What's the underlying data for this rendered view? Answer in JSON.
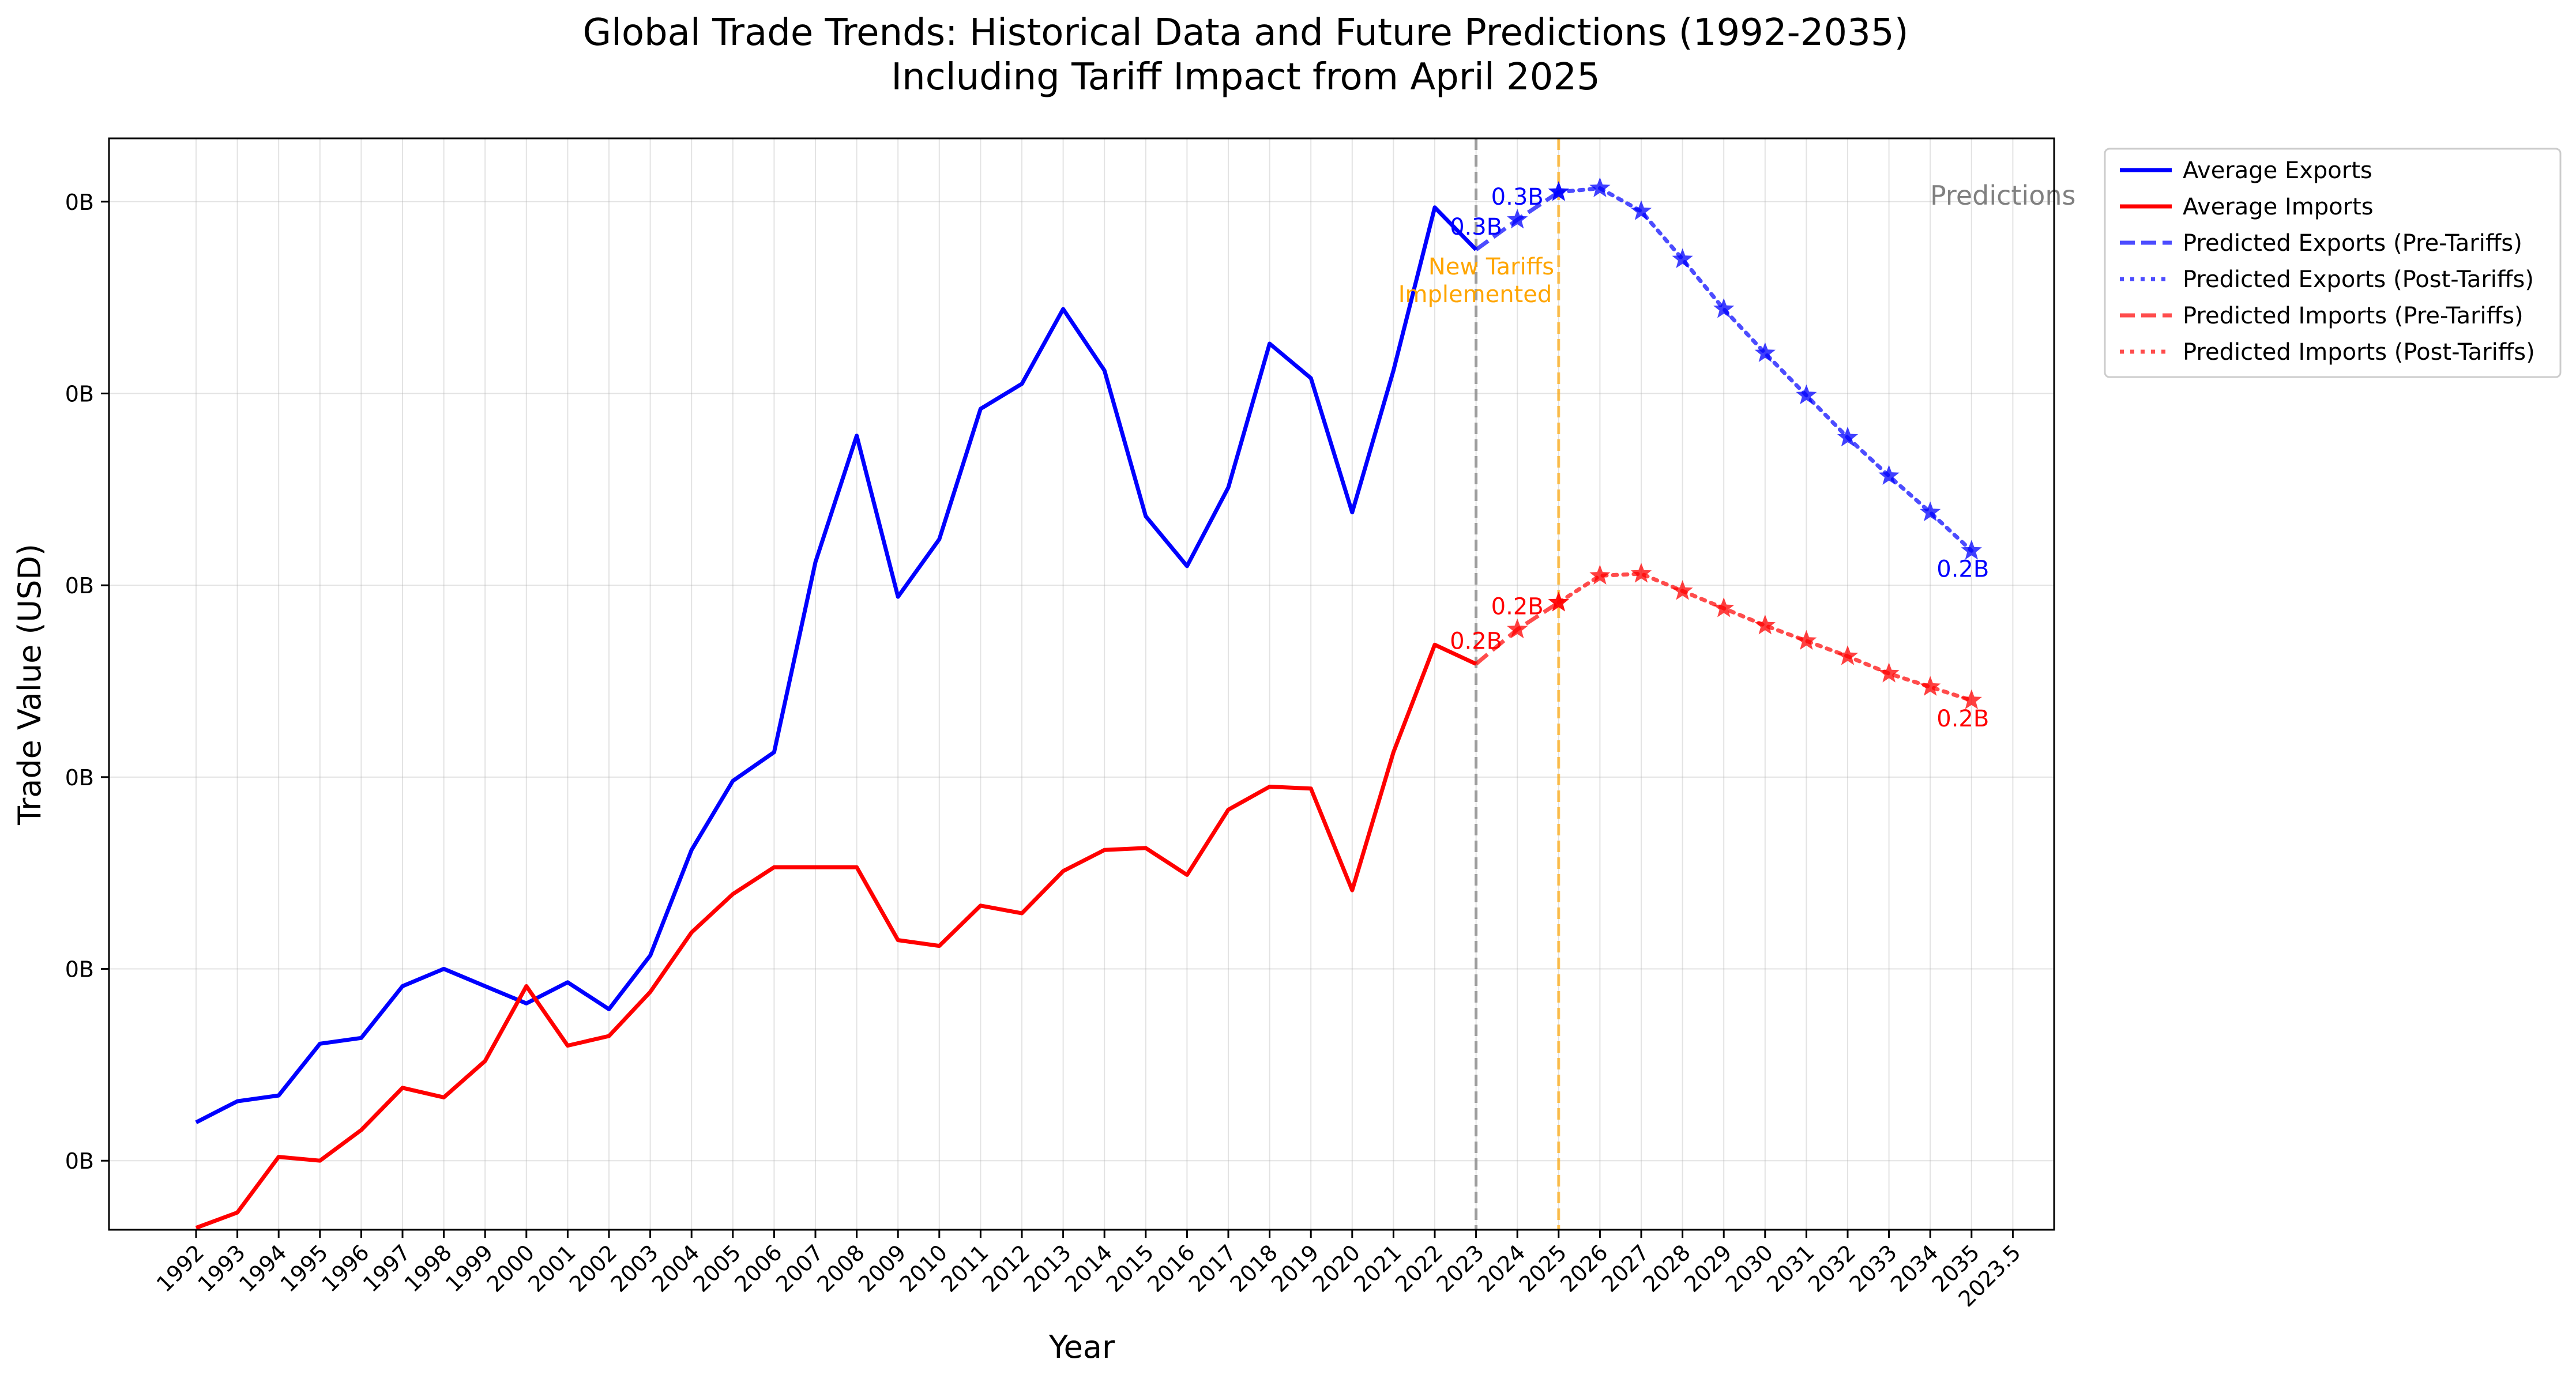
{
  "chart_data": {
    "type": "line",
    "title_line1": "Global Trade Trends: Historical Data and Future Predictions (1992-2035)",
    "title_line2": "Including Tariff Impact from April 2025",
    "xlabel": "Year",
    "ylabel": "Trade Value (USD)",
    "x_ticks": [
      "1992",
      "1993",
      "1994",
      "1995",
      "1996",
      "1997",
      "1998",
      "1999",
      "2000",
      "2001",
      "2002",
      "2003",
      "2004",
      "2005",
      "2006",
      "2007",
      "2008",
      "2009",
      "2010",
      "2011",
      "2012",
      "2013",
      "2014",
      "2015",
      "2016",
      "2017",
      "2018",
      "2019",
      "2020",
      "2021",
      "2022",
      "2023",
      "2024",
      "2025",
      "2026",
      "2027",
      "2028",
      "2029",
      "2030",
      "2031",
      "2032",
      "2033",
      "2034",
      "2035",
      "2023.5"
    ],
    "y_ticks": [
      "0B",
      "0B",
      "0B",
      "0B",
      "0B",
      "0B"
    ],
    "y_tick_values": [
      0.05,
      0.1,
      0.15,
      0.2,
      0.25,
      0.3
    ],
    "ylim": [
      0.032,
      0.3165
    ],
    "grid": true,
    "legend_position": "outside-top-right",
    "colors": {
      "exports": "#0000ff",
      "imports": "#ff0000",
      "tariff_line": "#ffa500",
      "current_line": "#888888",
      "predictions_text": "#808080",
      "tariff_text": "#ffa500"
    },
    "legend": [
      "Average Exports",
      "Average Imports",
      "Predicted Exports (Pre-Tariffs)",
      "Predicted Exports (Post-Tariffs)",
      "Predicted Imports (Pre-Tariffs)",
      "Predicted Imports (Post-Tariffs)"
    ],
    "series": [
      {
        "name": "Average Exports",
        "style": "solid",
        "x": [
          1992,
          1993,
          1994,
          1995,
          1996,
          1997,
          1998,
          1999,
          2000,
          2001,
          2002,
          2003,
          2004,
          2005,
          2006,
          2007,
          2008,
          2009,
          2010,
          2011,
          2012,
          2013,
          2014,
          2015,
          2016,
          2017,
          2018,
          2019,
          2020,
          2021,
          2022,
          2023
        ],
        "values": [
          0.06,
          0.0655,
          0.067,
          0.0805,
          0.082,
          0.0955,
          0.1,
          0.0955,
          0.091,
          0.0965,
          0.0895,
          0.1035,
          0.131,
          0.149,
          0.1565,
          0.206,
          0.239,
          0.197,
          0.212,
          0.246,
          0.2525,
          0.272,
          0.256,
          0.218,
          0.205,
          0.2255,
          0.263,
          0.254,
          0.219,
          0.256,
          0.2985,
          0.2875
        ]
      },
      {
        "name": "Average Imports",
        "style": "solid",
        "x": [
          1992,
          1993,
          1994,
          1995,
          1996,
          1997,
          1998,
          1999,
          2000,
          2001,
          2002,
          2003,
          2004,
          2005,
          2006,
          2007,
          2008,
          2009,
          2010,
          2011,
          2012,
          2013,
          2014,
          2015,
          2016,
          2017,
          2018,
          2019,
          2020,
          2021,
          2022,
          2023
        ],
        "values": [
          0.0325,
          0.0365,
          0.051,
          0.05,
          0.058,
          0.069,
          0.0665,
          0.076,
          0.0955,
          0.08,
          0.0825,
          0.094,
          0.1095,
          0.1195,
          0.1265,
          0.1265,
          0.1265,
          0.1075,
          0.106,
          0.1165,
          0.1145,
          0.1255,
          0.131,
          0.1315,
          0.1245,
          0.1415,
          0.1475,
          0.147,
          0.1205,
          0.1565,
          0.1845,
          0.1795
        ]
      },
      {
        "name": "Predicted Exports (Pre-Tariffs)",
        "style": "dashed",
        "x": [
          2023,
          2024,
          2025
        ],
        "values": [
          0.2875,
          0.2953,
          0.3025
        ]
      },
      {
        "name": "Predicted Exports (Post-Tariffs)",
        "style": "dotted",
        "x": [
          2025,
          2026,
          2027,
          2028,
          2029,
          2030,
          2031,
          2032,
          2033,
          2034,
          2035
        ],
        "values": [
          0.3025,
          0.3035,
          0.2975,
          0.285,
          0.272,
          0.2605,
          0.2495,
          0.2385,
          0.2285,
          0.219,
          0.209
        ]
      },
      {
        "name": "Predicted Imports (Pre-Tariffs)",
        "style": "dashed",
        "x": [
          2023,
          2024,
          2025
        ],
        "values": [
          0.1795,
          0.1885,
          0.1955
        ]
      },
      {
        "name": "Predicted Imports (Post-Tariffs)",
        "style": "dotted",
        "x": [
          2025,
          2026,
          2027,
          2028,
          2029,
          2030,
          2031,
          2032,
          2033,
          2034,
          2035
        ],
        "values": [
          0.1955,
          0.2025,
          0.203,
          0.1985,
          0.194,
          0.1895,
          0.1855,
          0.1815,
          0.177,
          0.1735,
          0.17
        ]
      }
    ],
    "point_labels": [
      {
        "text": "0.3B",
        "x": 2023,
        "y": 0.2875,
        "series": "exports"
      },
      {
        "text": "0.3B",
        "x": 2024,
        "y": 0.2953,
        "series": "exports"
      },
      {
        "text": "0.2B",
        "x": 2035,
        "y": 0.209,
        "series": "exports"
      },
      {
        "text": "0.2B",
        "x": 2023,
        "y": 0.1795,
        "series": "imports"
      },
      {
        "text": "0.2B",
        "x": 2024,
        "y": 0.1885,
        "series": "imports"
      },
      {
        "text": "0.2B",
        "x": 2035,
        "y": 0.17,
        "series": "imports"
      }
    ],
    "vertical_lines": [
      {
        "x": 2023,
        "color": "current_line"
      },
      {
        "x": 2025,
        "color": "tariff_line"
      }
    ],
    "annotations": {
      "tariff_line1": "New Tariffs",
      "tariff_line2": "Implemented",
      "predictions": "Predictions"
    }
  }
}
